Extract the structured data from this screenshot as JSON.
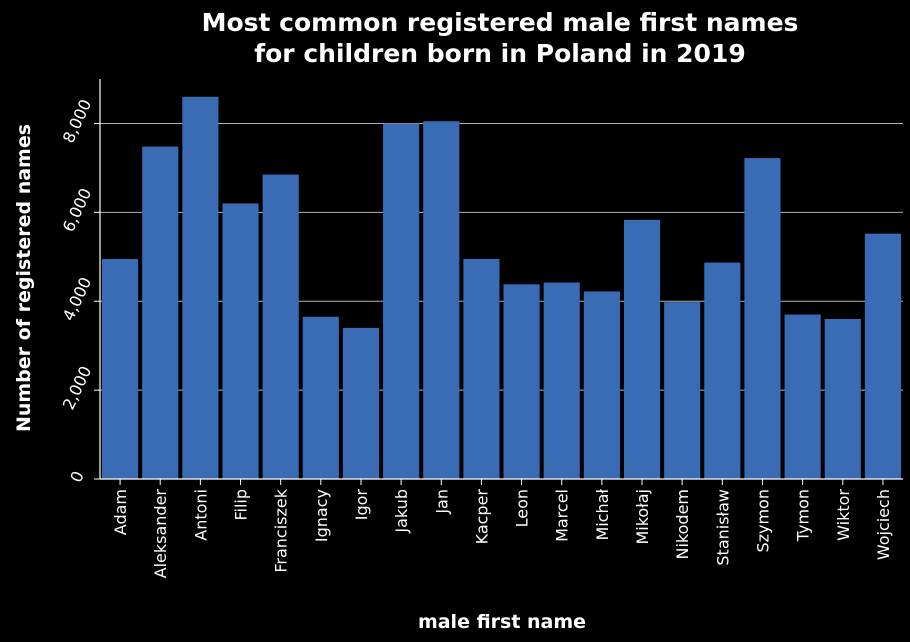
{
  "chart_data": {
    "type": "bar",
    "title_line1": "Most common registered male first names",
    "title_line2": "for children born in Poland in 2019",
    "xlabel": "male first name",
    "ylabel": "Number of registered names",
    "ylim": [
      0,
      9000
    ],
    "yticks": [
      0,
      2000,
      4000,
      6000,
      8000
    ],
    "ytick_labels": [
      "0",
      "2,000",
      "4,000",
      "6,000",
      "8,000"
    ],
    "grid": "horizontal",
    "bar_color": "#3a6bb5",
    "categories": [
      "Adam",
      "Aleksander",
      "Antoni",
      "Filip",
      "Franciszek",
      "Ignacy",
      "Igor",
      "Jakub",
      "Jan",
      "Kacper",
      "Leon",
      "Marcel",
      "Michał",
      "Mikołaj",
      "Nikodem",
      "Stanisław",
      "Szymon",
      "Tymon",
      "Wiktor",
      "Wojciech"
    ],
    "values": [
      4950,
      7480,
      8600,
      6200,
      6850,
      3650,
      3400,
      8000,
      8050,
      4950,
      4380,
      4420,
      4220,
      5830,
      3980,
      4870,
      7220,
      3700,
      3600,
      5520
    ]
  }
}
